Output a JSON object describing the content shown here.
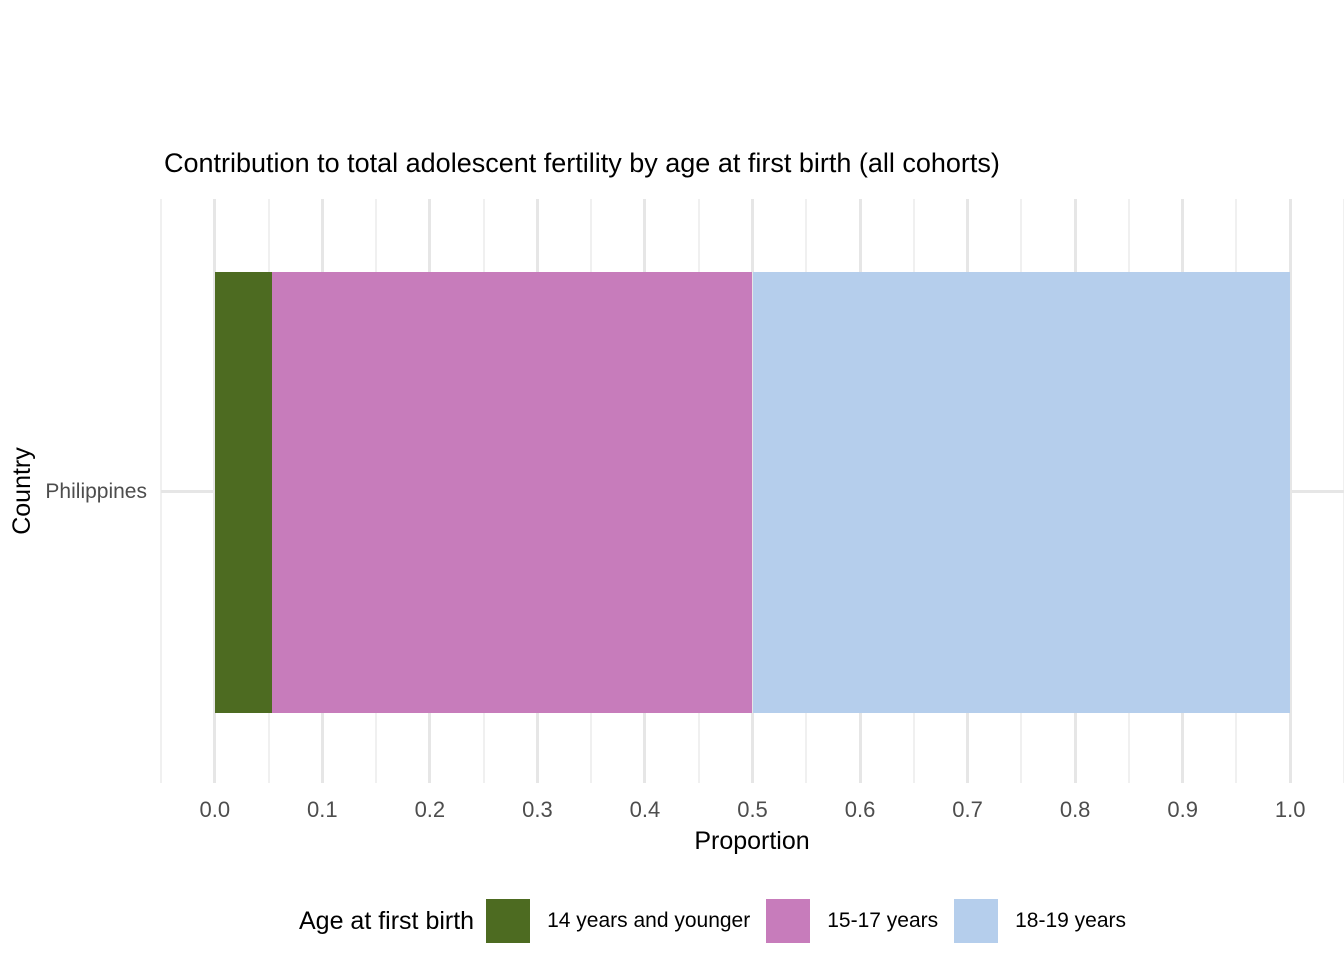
{
  "chart_data": {
    "type": "bar",
    "orientation": "horizontal",
    "stacked": true,
    "title": "Contribution to total adolescent fertility by age at first birth (all cohorts)",
    "xlabel": "Proportion",
    "ylabel": "Country",
    "categories": [
      "Philippines"
    ],
    "series": [
      {
        "name": "14 years and younger",
        "color": "#4d6b21",
        "values": [
          0.053
        ]
      },
      {
        "name": "15-17 years",
        "color": "#c77cbb",
        "values": [
          0.447
        ]
      },
      {
        "name": "18-19 years",
        "color": "#b5ceec",
        "values": [
          0.5
        ]
      }
    ],
    "xlim": [
      -0.05,
      1.05
    ],
    "x_ticks": [
      0.0,
      0.1,
      0.2,
      0.3,
      0.4,
      0.5,
      0.6,
      0.7,
      0.8,
      0.9,
      1.0
    ],
    "x_tick_labels": [
      "0.0",
      "0.1",
      "0.2",
      "0.3",
      "0.4",
      "0.5",
      "0.6",
      "0.7",
      "0.8",
      "0.9",
      "1.0"
    ],
    "x_minor_ticks": [
      -0.05,
      0.05,
      0.15,
      0.25,
      0.35,
      0.45,
      0.55,
      0.65,
      0.75,
      0.85,
      0.95,
      1.05
    ],
    "grid": true,
    "legend_title": "Age at first birth",
    "legend_position": "bottom"
  },
  "style_colors": {
    "grid_major": "#e6e6e6",
    "grid_minor": "#f0f0f0",
    "axis_text": "#4d4d4d",
    "title_text": "#000000",
    "background": "#ffffff"
  }
}
